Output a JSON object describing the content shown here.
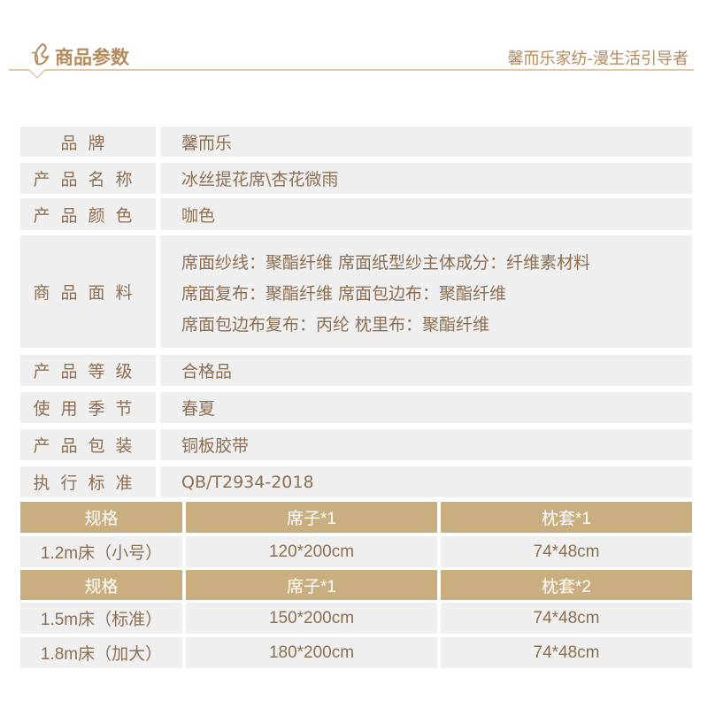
{
  "header": {
    "title": "商品参数",
    "slogan": "馨而乐家纺-漫生活引导者",
    "icon": "butterfly-logo-icon",
    "accent": "#b38a5e"
  },
  "params": [
    {
      "label": "品牌",
      "value": "馨而乐"
    },
    {
      "label": "产品名称",
      "value": "冰丝提花席\\杏花微雨"
    },
    {
      "label": "产品颜色",
      "value": "咖色"
    },
    {
      "label": "商品面料",
      "lines": [
        "席面纱线：聚酯纤维  席面纸型纱主体成分：纤维素材料",
        "席面复布：聚酯纤维  席面包边布：聚酯纤维",
        "席面包边布复布：丙纶  枕里布：聚酯纤维"
      ]
    },
    {
      "label": "产品等级",
      "value": "合格品"
    },
    {
      "label": "使用季节",
      "value": "春夏"
    },
    {
      "label": "产品包装",
      "value": "铜板胶带"
    },
    {
      "label": "执行标准",
      "value": "QB/T2934-2018"
    }
  ],
  "spec": {
    "header_color": "#c9ae7f",
    "rows": [
      {
        "type": "header",
        "cells": [
          "规格",
          "席子*1",
          "枕套*1"
        ]
      },
      {
        "type": "data",
        "cells": [
          "1.2m床（小号）",
          "120*200cm",
          "74*48cm"
        ]
      },
      {
        "type": "header",
        "cells": [
          "规格",
          "席子*1",
          "枕套*2"
        ]
      },
      {
        "type": "data",
        "cells": [
          "1.5m床（标准）",
          "150*200cm",
          "74*48cm"
        ]
      },
      {
        "type": "data",
        "cells": [
          "1.8m床（加大）",
          "180*200cm",
          "74*48cm"
        ]
      }
    ]
  }
}
